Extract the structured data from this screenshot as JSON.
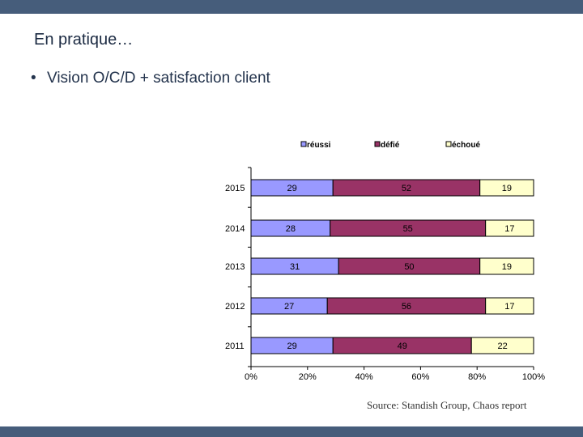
{
  "slide": {
    "title": "En pratique…",
    "bullet_marker": "•",
    "bullet": "Vision O/C/D + satisfaction client",
    "source": "Source: Standish Group, Chaos report",
    "header_color": "#465d7b"
  },
  "chart_data": {
    "type": "bar",
    "orientation": "horizontal",
    "stacked": "percent",
    "categories": [
      "2015",
      "2014",
      "2013",
      "2012",
      "2011"
    ],
    "series": [
      {
        "name": "réussi",
        "color": "#9999ff",
        "values": [
          29,
          28,
          31,
          27,
          29
        ]
      },
      {
        "name": "défié",
        "color": "#993366",
        "values": [
          52,
          55,
          50,
          56,
          49
        ]
      },
      {
        "name": "échoué",
        "color": "#ffffcc",
        "values": [
          19,
          17,
          19,
          17,
          22
        ]
      }
    ],
    "xlim": [
      0,
      100
    ],
    "xticks": [
      "0%",
      "20%",
      "40%",
      "60%",
      "80%",
      "100%"
    ],
    "legend_position": "top",
    "title": "",
    "xlabel": "",
    "ylabel": ""
  }
}
